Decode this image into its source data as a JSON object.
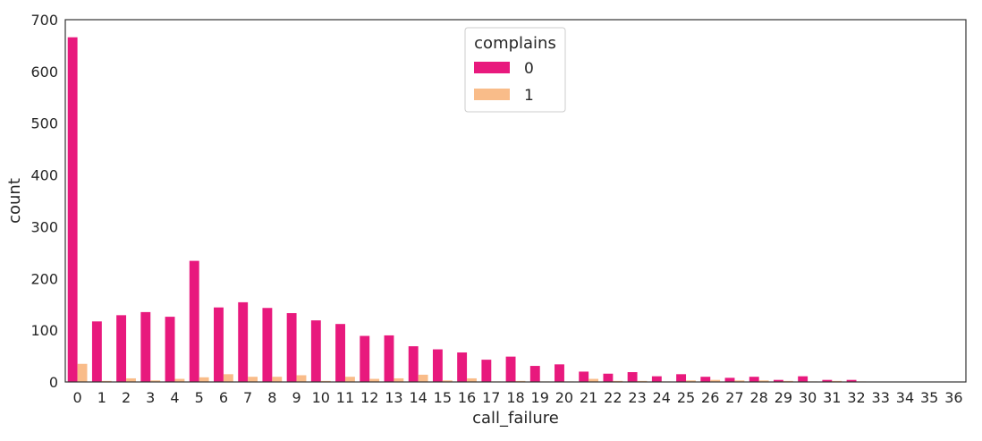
{
  "chart_data": {
    "type": "bar",
    "xlabel": "call_failure",
    "ylabel": "count",
    "ylim": [
      0,
      700
    ],
    "yticks": [
      0,
      100,
      200,
      300,
      400,
      500,
      600,
      700
    ],
    "grid": false,
    "legend": {
      "title": "complains",
      "placement": "top-center"
    },
    "categories": [
      "0",
      "1",
      "2",
      "3",
      "4",
      "5",
      "6",
      "7",
      "8",
      "9",
      "10",
      "11",
      "12",
      "13",
      "14",
      "15",
      "16",
      "17",
      "18",
      "19",
      "20",
      "21",
      "22",
      "23",
      "24",
      "25",
      "26",
      "27",
      "28",
      "29",
      "30",
      "31",
      "32",
      "33",
      "34",
      "35",
      "36"
    ],
    "series": [
      {
        "name": "0",
        "color": "#e8197d",
        "values": [
          666,
          117,
          129,
          135,
          126,
          234,
          144,
          154,
          143,
          133,
          119,
          112,
          89,
          90,
          69,
          63,
          57,
          43,
          49,
          31,
          34,
          20,
          16,
          19,
          11,
          15,
          10,
          8,
          10,
          4,
          11,
          4,
          4,
          0,
          0,
          0,
          0
        ]
      },
      {
        "name": "1",
        "color": "#f9bc89",
        "values": [
          35,
          2,
          7,
          3,
          6,
          9,
          15,
          10,
          10,
          13,
          2,
          10,
          6,
          7,
          14,
          3,
          7,
          1,
          2,
          1,
          1,
          6,
          2,
          2,
          1,
          3,
          4,
          3,
          3,
          2,
          1,
          2,
          1,
          0,
          0,
          0,
          0
        ]
      }
    ]
  }
}
